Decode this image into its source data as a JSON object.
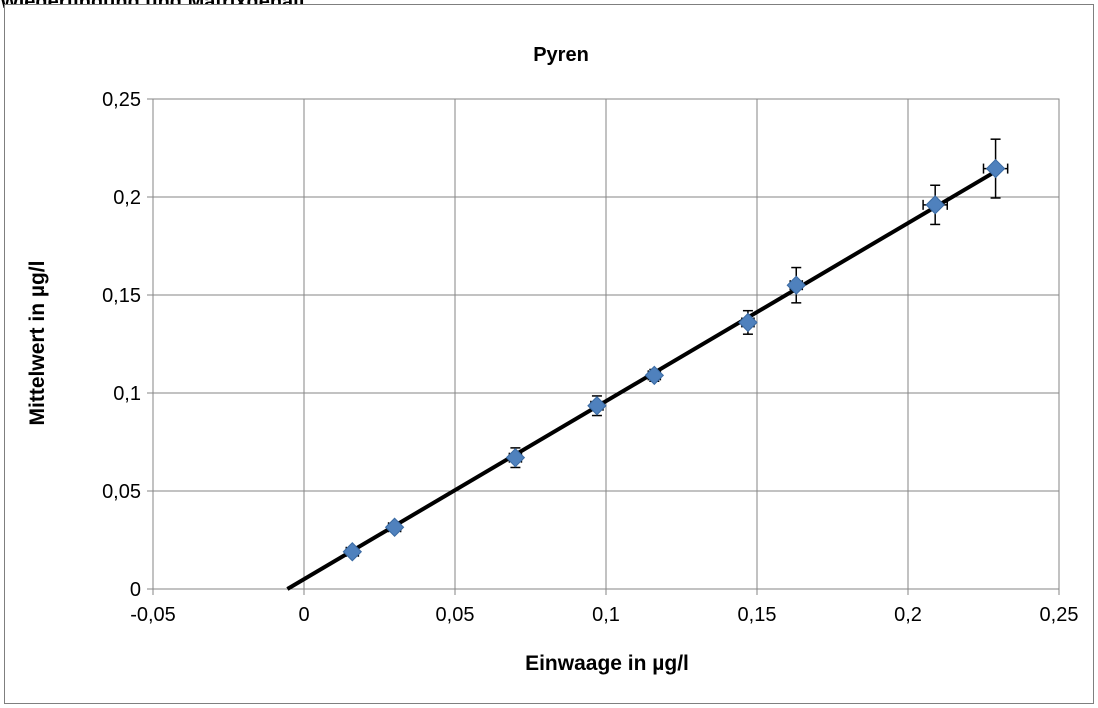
{
  "page": {
    "heading": "Wiederfindung und Matrixgehalt"
  },
  "chart_data": {
    "type": "scatter",
    "title": "Pyren",
    "xlabel": "Einwaage in µg/l",
    "ylabel": "Mittelwert in µg/l",
    "xlim": [
      -0.05,
      0.25
    ],
    "ylim": [
      0,
      0.25
    ],
    "x_ticks": [
      "-0,05",
      "0",
      "0,05",
      "0,1",
      "0,15",
      "0,2",
      "0,25"
    ],
    "y_ticks": [
      "0",
      "0,05",
      "0,1",
      "0,15",
      "0,2",
      "0,25"
    ],
    "grid": true,
    "legend": "none",
    "marker_color": "#4f81bd",
    "line_color": "#000000",
    "series": [
      {
        "points": [
          {
            "x": 0.016,
            "y": 0.019,
            "yerr": 0.002,
            "xerr": 0.002
          },
          {
            "x": 0.03,
            "y": 0.0315,
            "yerr": 0.002,
            "xerr": 0.002
          },
          {
            "x": 0.07,
            "y": 0.067,
            "yerr": 0.005,
            "xerr": 0.002
          },
          {
            "x": 0.097,
            "y": 0.0935,
            "yerr": 0.005,
            "xerr": 0.002
          },
          {
            "x": 0.116,
            "y": 0.109,
            "yerr": 0.003,
            "xerr": 0.002
          },
          {
            "x": 0.147,
            "y": 0.136,
            "yerr": 0.006,
            "xerr": 0.002
          },
          {
            "x": 0.163,
            "y": 0.155,
            "yerr": 0.009,
            "xerr": 0.002
          },
          {
            "x": 0.209,
            "y": 0.196,
            "yerr": 0.01,
            "xerr": 0.004
          },
          {
            "x": 0.229,
            "y": 0.2145,
            "yerr": 0.015,
            "xerr": 0.004
          }
        ]
      }
    ],
    "trendline": {
      "x": [
        -0.0055,
        0.2295
      ],
      "y": [
        0,
        0.2135
      ]
    }
  }
}
